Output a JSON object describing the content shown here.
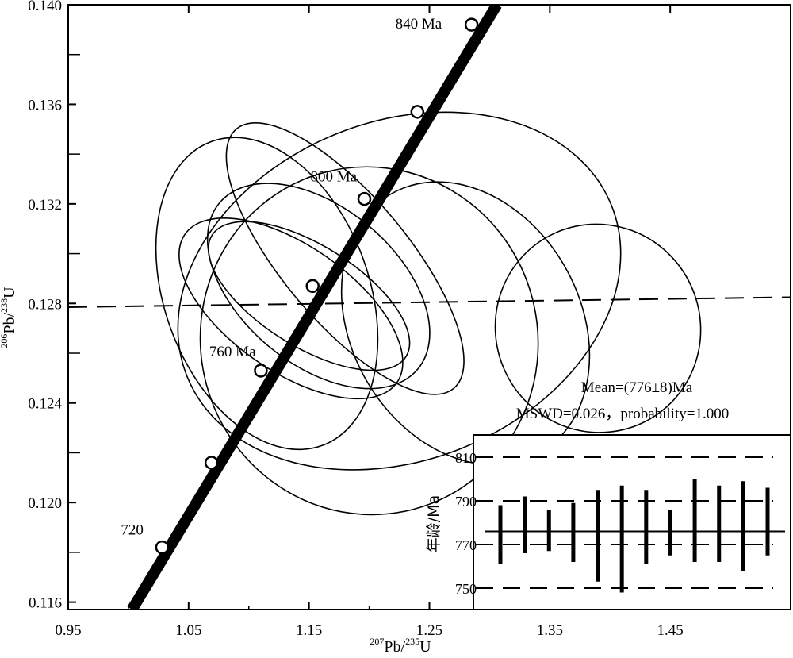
{
  "chart_data": {
    "type": "scatter",
    "subtype": "concordia-diagram",
    "xlabel": {
      "sup": "207",
      "element": "Pb/",
      "sup2": "235",
      "element2": "U"
    },
    "ylabel": {
      "sup": "206",
      "element": "Pb/",
      "sup2": "238",
      "element2": "U"
    },
    "xlim": [
      0.95,
      1.55
    ],
    "ylim": [
      0.1157,
      0.14
    ],
    "x_ticks": [
      0.95,
      1.05,
      1.15,
      1.25,
      1.35,
      1.45
    ],
    "x_tick_labels": [
      "0.95",
      "1.05",
      "1.15",
      "1.25",
      "1.35",
      "1.45"
    ],
    "y_ticks": [
      0.116,
      0.12,
      0.124,
      0.128,
      0.132,
      0.136,
      0.14
    ],
    "y_tick_labels": [
      "0.116",
      "0.120",
      "0.124",
      "0.128",
      "0.132",
      "0.136",
      "0.140"
    ],
    "concordia": {
      "line": [
        [
          1.003,
          0.1157
        ],
        [
          1.306,
          0.14
        ]
      ],
      "age_markers": [
        {
          "x": 1.028,
          "y": 0.1182,
          "label": "720"
        },
        {
          "x": 1.069,
          "y": 0.1216,
          "label": ""
        },
        {
          "x": 1.11,
          "y": 0.1253,
          "label": "760 Ma"
        },
        {
          "x": 1.153,
          "y": 0.1287,
          "label": ""
        },
        {
          "x": 1.196,
          "y": 0.1322,
          "label": "800 Ma"
        },
        {
          "x": 1.24,
          "y": 0.1357,
          "label": ""
        },
        {
          "x": 1.285,
          "y": 0.1392,
          "label": "840 Ma"
        }
      ]
    },
    "reference_line": {
      "x": [
        0.95,
        1.55
      ],
      "y": [
        0.12785,
        0.12825
      ]
    },
    "ellipses": [
      {
        "cx": 1.115,
        "cy": 0.1284,
        "rx": 0.085,
        "ry": 0.0065,
        "angle": -20
      },
      {
        "cx": 1.135,
        "cy": 0.1278,
        "rx": 0.052,
        "ry": 0.0052,
        "angle": -55
      },
      {
        "cx": 1.15,
        "cy": 0.1283,
        "rx": 0.042,
        "ry": 0.0046,
        "angle": -58
      },
      {
        "cx": 1.158,
        "cy": 0.1287,
        "rx": 0.065,
        "ry": 0.0052,
        "angle": -50
      },
      {
        "cx": 1.18,
        "cy": 0.1298,
        "rx": 0.052,
        "ry": 0.0068,
        "angle": -40
      },
      {
        "cx": 1.225,
        "cy": 0.1285,
        "rx": 0.19,
        "ry": 0.0068,
        "angle": -22
      },
      {
        "cx": 1.2,
        "cy": 0.1265,
        "rx": 0.14,
        "ry": 0.007,
        "angle": -15
      },
      {
        "cx": 1.28,
        "cy": 0.1272,
        "rx": 0.095,
        "ry": 0.006,
        "angle": -30
      },
      {
        "cx": 1.39,
        "cy": 0.127,
        "rx": 0.085,
        "ry": 0.0042,
        "angle": -25
      }
    ],
    "stats": {
      "line1": "Mean=(776±8)Ma",
      "line2": "MSWD=0.026，probability=1.000"
    },
    "inset": {
      "ylabel": "年龄/Ma",
      "ylim": [
        740,
        820
      ],
      "y_ticks": [
        750,
        770,
        790,
        810
      ],
      "y_tick_labels": [
        "750",
        "770",
        "790",
        "810"
      ],
      "mean": 776,
      "bounds_dashed": [
        750,
        770,
        790,
        810
      ],
      "bars": [
        {
          "low": 761,
          "high": 788
        },
        {
          "low": 766,
          "high": 792
        },
        {
          "low": 767,
          "high": 786
        },
        {
          "low": 762,
          "high": 789
        },
        {
          "low": 753,
          "high": 795
        },
        {
          "low": 748,
          "high": 797
        },
        {
          "low": 761,
          "high": 795
        },
        {
          "low": 765,
          "high": 786
        },
        {
          "low": 762,
          "high": 800
        },
        {
          "low": 762,
          "high": 797
        },
        {
          "low": 758,
          "high": 799
        },
        {
          "low": 765,
          "high": 796
        }
      ]
    }
  }
}
